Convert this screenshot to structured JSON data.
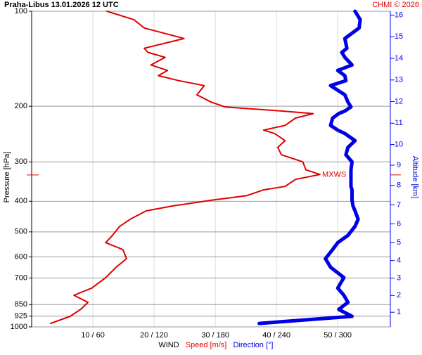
{
  "chart_data": {
    "type": "line",
    "title": "Praha-Libus    13.01.2026 12 UTC",
    "credit": "CHMI © 2026",
    "ylabel": "Pressure [hPa]",
    "y2label": "Altitude [km]",
    "xlabel": "WIND",
    "y_log": true,
    "grid": true,
    "ylim": [
      1000,
      100
    ],
    "yticks": [
      100,
      200,
      300,
      400,
      500,
      600,
      700,
      850,
      925,
      1000
    ],
    "y2ticks": [
      1,
      2,
      3,
      4,
      5,
      6,
      7,
      8,
      9,
      10,
      11,
      12,
      13,
      14,
      15,
      16
    ],
    "xlim": [
      0,
      58.6
    ],
    "x2lim": [
      0,
      351.6
    ],
    "xticks": [
      {
        "value": 10,
        "label": "10 / 60"
      },
      {
        "value": 20,
        "label": "20 / 120"
      },
      {
        "value": 30,
        "label": "30 / 180"
      },
      {
        "value": 40,
        "label": "40 / 240"
      },
      {
        "value": 50,
        "label": "50 / 300"
      }
    ],
    "annotation": {
      "text": "MXWS",
      "pressure": 330
    },
    "pressure": [
      100,
      106.3,
      113,
      122,
      131,
      135,
      140,
      148,
      154,
      160,
      166,
      172,
      184,
      194,
      201,
      207,
      211,
      218,
      230,
      238,
      244,
      257,
      270,
      285,
      300,
      318,
      329,
      341,
      359,
      368,
      384,
      397,
      414,
      429,
      456,
      480,
      513,
      541,
      569,
      608,
      647,
      698,
      754,
      794,
      836,
      880,
      926,
      975
    ],
    "series": [
      {
        "name": "Speed [m/s]",
        "color": "#e00000",
        "axis": "x",
        "values": [
          12.3,
          16.7,
          18.4,
          24.9,
          18.4,
          19.0,
          21.8,
          19.5,
          22.2,
          20.7,
          24.1,
          28.2,
          27.0,
          29.3,
          31.6,
          40.8,
          46.0,
          43.1,
          41.4,
          37.9,
          39.7,
          41.4,
          40.2,
          40.8,
          44.3,
          44.8,
          47.1,
          43.1,
          41.4,
          37.9,
          35.1,
          29.3,
          23.0,
          18.7,
          16.1,
          14.4,
          13.2,
          12.1,
          14.9,
          15.5,
          13.8,
          12.1,
          9.8,
          6.9,
          9.2,
          8.0,
          6.3,
          3.1
        ]
      },
      {
        "name": "Direction [°]",
        "color": "#0000e6",
        "axis": "x2",
        "values": [
          317,
          322,
          321,
          307,
          309,
          304,
          307,
          314,
          300,
          307,
          308,
          293,
          307,
          310,
          313,
          307,
          301,
          295,
          293,
          300,
          307,
          317,
          310,
          308,
          314,
          313,
          313,
          313,
          313,
          314,
          314,
          314,
          315,
          317,
          320,
          317,
          310,
          300,
          295,
          288,
          293,
          306,
          300,
          306,
          310,
          301,
          314,
          223
        ]
      }
    ]
  }
}
